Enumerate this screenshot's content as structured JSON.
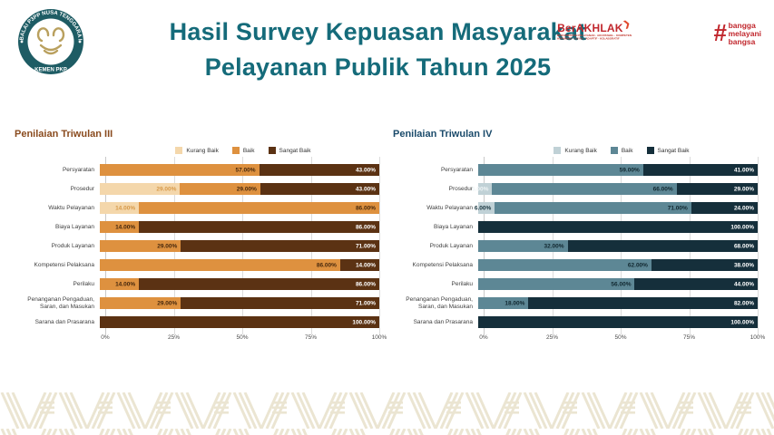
{
  "header": {
    "badge": {
      "top_text": "BALAI P3PP NUSA TENGGARA I",
      "bottom_text": "KEMEN PKP"
    },
    "title_line1": "Hasil Survey Kepuasan Masyarakat",
    "title_line2": "Pelayanan Publik Tahun 2025",
    "berakhlak": {
      "prefix": "Ber",
      "main": "AKHLAK",
      "tagline1": "BERORIENTASI PELAYANAN · AKUNTABEL · KOMPETEN",
      "tagline2": "HARMONIS · LOYAL · ADAPTIF · KOLABORATIF"
    },
    "bangga": {
      "hash": "#",
      "word1": "bangga",
      "word2": "melayani",
      "word3": "bangsa"
    }
  },
  "colors": {
    "teal": "#156b7a",
    "brand-red": "#c1272d",
    "chevron": "#e0492e",
    "grid": "#dcdcdc",
    "pattern": "#ebe5d2",
    "badge-teal": "#1e5c64",
    "badge-gold": "#b9a05e"
  },
  "chart_data": [
    {
      "type": "bar",
      "orientation": "horizontal-stacked",
      "title": "Penilaian Triwulan III",
      "title_color": "#8a4b1e",
      "legend_position": "top-center",
      "grid": true,
      "xlim": [
        0,
        100
      ],
      "x_ticks": [
        "0%",
        "25%",
        "50%",
        "75%",
        "100%"
      ],
      "categories": [
        "Persyaratan",
        "Prosedur",
        "Waktu Pelayanan",
        "Biaya Layanan",
        "Produk Layanan",
        "Kompetensi Pelaksana",
        "Perilaku",
        "Penanganan Pengaduan, Saran, dan Masukan",
        "Sarana dan Prasarana"
      ],
      "series": [
        {
          "name": "Kurang Baik",
          "color": "#f4d7ab",
          "label_color": "#d79a4a",
          "values": [
            0,
            29,
            14,
            0,
            0,
            0,
            0,
            0,
            0
          ]
        },
        {
          "name": "Baik",
          "color": "#de913f",
          "label_color": "#46280d",
          "values": [
            57,
            29,
            86,
            14,
            29,
            86,
            14,
            29,
            0
          ]
        },
        {
          "name": "Sangat Baik",
          "color": "#5b3213",
          "label_color": "#ffffff",
          "values": [
            43,
            43,
            0,
            86,
            71,
            14,
            86,
            71,
            100
          ]
        }
      ]
    },
    {
      "type": "bar",
      "orientation": "horizontal-stacked",
      "title": "Penilaian Triwulan IV",
      "title_color": "#1b4b6b",
      "legend_position": "top-center",
      "grid": true,
      "xlim": [
        0,
        100
      ],
      "x_ticks": [
        "0%",
        "25%",
        "50%",
        "75%",
        "100%"
      ],
      "categories": [
        "Persyaratan",
        "Prosedur",
        "Waktu Pelayanan",
        "Biaya Layanan",
        "Produk Layanan",
        "Kompetensi Pelaksana",
        "Perilaku",
        "Penanganan Pengaduan, Saran, dan Masukan",
        "Sarana dan Prasarana"
      ],
      "series": [
        {
          "name": "Kurang Baik",
          "color": "#c0d1d6",
          "label_color": "#16333d",
          "label_color_overrides": {
            "1": "#eef4f5"
          },
          "values": [
            0,
            5,
            6,
            0,
            0,
            0,
            0,
            0,
            0
          ]
        },
        {
          "name": "Baik",
          "color": "#5d8795",
          "label_color": "#10272f",
          "values": [
            59,
            66,
            71,
            0,
            32,
            62,
            56,
            18,
            0
          ]
        },
        {
          "name": "Sangat Baik",
          "color": "#152f3b",
          "label_color": "#ffffff",
          "values": [
            41,
            29,
            24,
            100,
            68,
            38,
            44,
            82,
            100
          ]
        }
      ]
    }
  ]
}
